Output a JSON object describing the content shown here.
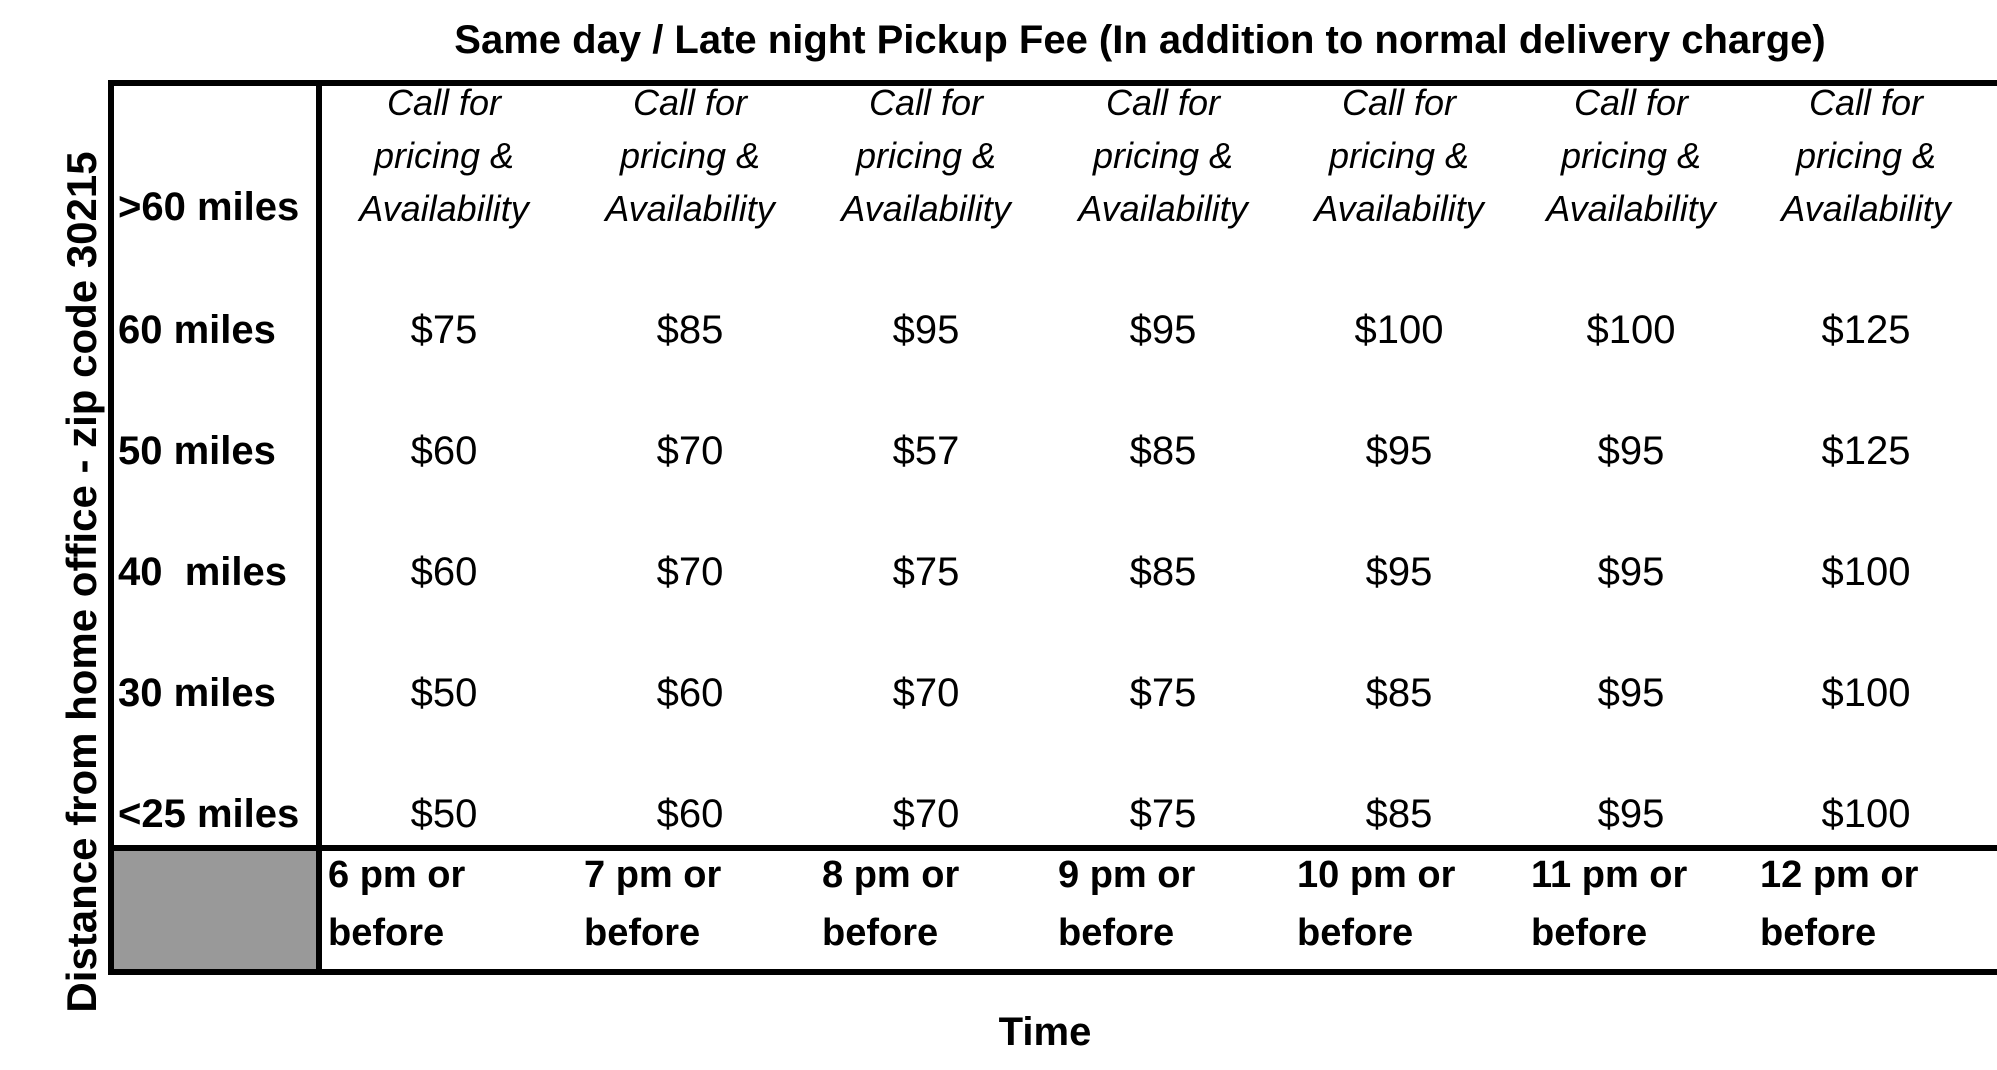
{
  "title": "Same day / Late night Pickup Fee (In addition to normal delivery charge)",
  "y_axis_label": "Distance from home office - zip code 30215",
  "x_axis_label": "Time",
  "rows": [
    {
      "label": ">60 miles",
      "cells": [
        "Call for pricing & Availability",
        "Call for pricing & Availability",
        "Call for pricing & Availability",
        "Call for pricing & Availability",
        "Call for pricing & Availability",
        "Call for pricing & Availability",
        "Call for pricing & Availability"
      ]
    },
    {
      "label": "60 miles",
      "cells": [
        "$75",
        "$85",
        "$95",
        "$95",
        "$100",
        "$100",
        "$125"
      ]
    },
    {
      "label": "50 miles",
      "cells": [
        "$60",
        "$70",
        "$57",
        "$85",
        "$95",
        "$95",
        "$125"
      ]
    },
    {
      "label": "40  miles",
      "cells": [
        "$60",
        "$70",
        "$75",
        "$85",
        "$95",
        "$95",
        "$100"
      ]
    },
    {
      "label": "30 miles",
      "cells": [
        "$50",
        "$60",
        "$70",
        "$75",
        "$85",
        "$95",
        "$100"
      ]
    },
    {
      "label": "<25 miles",
      "cells": [
        "$50",
        "$60",
        "$70",
        "$75",
        "$85",
        "$95",
        "$100"
      ]
    }
  ],
  "time_columns": [
    {
      "line1": "6 pm or",
      "line2": "before"
    },
    {
      "line1": "7 pm or",
      "line2": "before"
    },
    {
      "line1": "8 pm or",
      "line2": "before"
    },
    {
      "line1": "9 pm or",
      "line2": "before"
    },
    {
      "line1": "10 pm or",
      "line2": "before"
    },
    {
      "line1": "11 pm or",
      "line2": "before"
    },
    {
      "line1": "12 pm or",
      "line2": "before"
    }
  ],
  "call_text": {
    "line1": "Call for",
    "line2": "pricing &",
    "line3": "Availability"
  }
}
